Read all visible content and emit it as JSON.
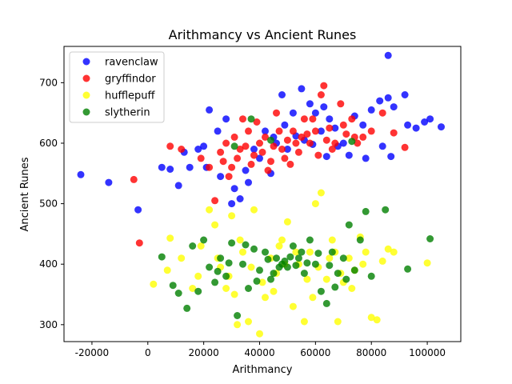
{
  "chart_data": {
    "type": "scatter",
    "title": "Arithmancy vs Ancient Runes",
    "xlabel": "Arithmancy",
    "ylabel": "Ancient Runes",
    "xlim": [
      -30000,
      112000
    ],
    "ylim": [
      272,
      760
    ],
    "xticks": [
      -20000,
      0,
      20000,
      40000,
      60000,
      80000,
      100000
    ],
    "yticks": [
      300,
      400,
      500,
      600,
      700
    ],
    "grid": false,
    "legend_position": "top-left",
    "series": [
      {
        "name": "ravenclaw",
        "color": "#0000ff",
        "points": [
          [
            -24000,
            548
          ],
          [
            -14000,
            535
          ],
          [
            -3500,
            490
          ],
          [
            86000,
            745
          ],
          [
            5000,
            560
          ],
          [
            8000,
            557
          ],
          [
            11000,
            530
          ],
          [
            13000,
            585
          ],
          [
            15000,
            560
          ],
          [
            18000,
            590
          ],
          [
            20000,
            595
          ],
          [
            22000,
            655
          ],
          [
            25000,
            620
          ],
          [
            28000,
            640
          ],
          [
            30000,
            500
          ],
          [
            33000,
            508
          ],
          [
            35000,
            555
          ],
          [
            40000,
            575
          ],
          [
            45000,
            610
          ],
          [
            48000,
            680
          ],
          [
            52000,
            650
          ],
          [
            55000,
            690
          ],
          [
            58000,
            665
          ],
          [
            60000,
            650
          ],
          [
            63000,
            660
          ],
          [
            65000,
            640
          ],
          [
            67000,
            625
          ],
          [
            70000,
            600
          ],
          [
            74000,
            645
          ],
          [
            77000,
            630
          ],
          [
            80000,
            655
          ],
          [
            83000,
            670
          ],
          [
            86000,
            675
          ],
          [
            88000,
            660
          ],
          [
            92000,
            680
          ],
          [
            93000,
            630
          ],
          [
            96000,
            625
          ],
          [
            99000,
            635
          ],
          [
            101000,
            640
          ],
          [
            105000,
            627
          ],
          [
            42000,
            620
          ],
          [
            38000,
            590
          ],
          [
            46000,
            600
          ],
          [
            50000,
            590
          ],
          [
            56000,
            605
          ],
          [
            62000,
            620
          ],
          [
            68000,
            595
          ],
          [
            72000,
            580
          ],
          [
            78000,
            575
          ],
          [
            84000,
            595
          ],
          [
            87000,
            578
          ],
          [
            21000,
            560
          ],
          [
            26000,
            545
          ],
          [
            31000,
            525
          ],
          [
            36000,
            535
          ],
          [
            44000,
            550
          ],
          [
            49000,
            630
          ],
          [
            53000,
            612
          ],
          [
            59000,
            598
          ],
          [
            64000,
            578
          ]
        ]
      },
      {
        "name": "gryffindor",
        "color": "#ff0000",
        "points": [
          [
            -5000,
            540
          ],
          [
            -3000,
            435
          ],
          [
            8000,
            595
          ],
          [
            12000,
            590
          ],
          [
            19000,
            575
          ],
          [
            22000,
            560
          ],
          [
            24000,
            505
          ],
          [
            26000,
            585
          ],
          [
            28000,
            600
          ],
          [
            30000,
            560
          ],
          [
            32000,
            575
          ],
          [
            34000,
            640
          ],
          [
            36000,
            620
          ],
          [
            38000,
            580
          ],
          [
            40000,
            600
          ],
          [
            42000,
            610
          ],
          [
            44000,
            570
          ],
          [
            46000,
            650
          ],
          [
            48000,
            590
          ],
          [
            50000,
            605
          ],
          [
            52000,
            620
          ],
          [
            54000,
            585
          ],
          [
            56000,
            640
          ],
          [
            58000,
            600
          ],
          [
            60000,
            620
          ],
          [
            62000,
            680
          ],
          [
            63000,
            695
          ],
          [
            65000,
            625
          ],
          [
            67000,
            600
          ],
          [
            69000,
            665
          ],
          [
            71000,
            615
          ],
          [
            73000,
            640
          ],
          [
            75000,
            600
          ],
          [
            77000,
            610
          ],
          [
            80000,
            620
          ],
          [
            84000,
            650
          ],
          [
            88000,
            617
          ],
          [
            92000,
            593
          ],
          [
            29000,
            545
          ],
          [
            33000,
            590
          ],
          [
            37000,
            565
          ],
          [
            41000,
            585
          ],
          [
            45000,
            595
          ],
          [
            49000,
            575
          ],
          [
            53000,
            600
          ],
          [
            57000,
            615
          ],
          [
            61000,
            580
          ],
          [
            66000,
            590
          ],
          [
            70000,
            630
          ],
          [
            74000,
            610
          ],
          [
            27000,
            570
          ],
          [
            31000,
            610
          ],
          [
            35000,
            595
          ],
          [
            39000,
            635
          ],
          [
            43000,
            555
          ],
          [
            47000,
            620
          ],
          [
            51000,
            565
          ],
          [
            55000,
            610
          ],
          [
            59000,
            640
          ],
          [
            64000,
            605
          ]
        ]
      },
      {
        "name": "hufflepuff",
        "color": "#ffff00",
        "points": [
          [
            2000,
            367
          ],
          [
            7000,
            390
          ],
          [
            8000,
            443
          ],
          [
            12000,
            410
          ],
          [
            16000,
            360
          ],
          [
            19000,
            430
          ],
          [
            22000,
            490
          ],
          [
            24000,
            465
          ],
          [
            26000,
            395
          ],
          [
            28000,
            360
          ],
          [
            30000,
            480
          ],
          [
            32000,
            300
          ],
          [
            34000,
            420
          ],
          [
            36000,
            305
          ],
          [
            38000,
            490
          ],
          [
            40000,
            285
          ],
          [
            42000,
            345
          ],
          [
            44000,
            410
          ],
          [
            46000,
            385
          ],
          [
            48000,
            440
          ],
          [
            50000,
            470
          ],
          [
            52000,
            330
          ],
          [
            54000,
            400
          ],
          [
            56000,
            305
          ],
          [
            58000,
            420
          ],
          [
            60000,
            500
          ],
          [
            62000,
            518
          ],
          [
            64000,
            375
          ],
          [
            66000,
            440
          ],
          [
            68000,
            305
          ],
          [
            70000,
            370
          ],
          [
            72000,
            410
          ],
          [
            74000,
            390
          ],
          [
            76000,
            445
          ],
          [
            78000,
            420
          ],
          [
            80000,
            312
          ],
          [
            82000,
            308
          ],
          [
            84000,
            405
          ],
          [
            86000,
            425
          ],
          [
            88000,
            420
          ],
          [
            100000,
            402
          ],
          [
            25000,
            410
          ],
          [
            29000,
            380
          ],
          [
            33000,
            440
          ],
          [
            37000,
            395
          ],
          [
            41000,
            370
          ],
          [
            45000,
            355
          ],
          [
            49000,
            400
          ],
          [
            53000,
            420
          ],
          [
            57000,
            375
          ],
          [
            61000,
            395
          ],
          [
            65000,
            410
          ],
          [
            69000,
            385
          ],
          [
            73000,
            360
          ],
          [
            77000,
            400
          ],
          [
            18000,
            380
          ],
          [
            31000,
            350
          ],
          [
            47000,
            430
          ],
          [
            59000,
            345
          ],
          [
            67000,
            420
          ]
        ]
      },
      {
        "name": "slytherin",
        "color": "#008000",
        "points": [
          [
            5000,
            412
          ],
          [
            9000,
            365
          ],
          [
            11000,
            352
          ],
          [
            14000,
            327
          ],
          [
            16000,
            430
          ],
          [
            18000,
            355
          ],
          [
            20000,
            440
          ],
          [
            22000,
            395
          ],
          [
            24000,
            370
          ],
          [
            26000,
            410
          ],
          [
            28000,
            380
          ],
          [
            30000,
            435
          ],
          [
            32000,
            315
          ],
          [
            34000,
            400
          ],
          [
            36000,
            360
          ],
          [
            38000,
            425
          ],
          [
            40000,
            390
          ],
          [
            42000,
            420
          ],
          [
            44000,
            375
          ],
          [
            46000,
            410
          ],
          [
            48000,
            400
          ],
          [
            50000,
            395
          ],
          [
            52000,
            430
          ],
          [
            54000,
            410
          ],
          [
            56000,
            385
          ],
          [
            58000,
            440
          ],
          [
            60000,
            400
          ],
          [
            62000,
            355
          ],
          [
            64000,
            335
          ],
          [
            66000,
            420
          ],
          [
            68000,
            385
          ],
          [
            70000,
            410
          ],
          [
            72000,
            465
          ],
          [
            74000,
            390
          ],
          [
            76000,
            440
          ],
          [
            78000,
            487
          ],
          [
            80000,
            380
          ],
          [
            85000,
            490
          ],
          [
            93000,
            392
          ],
          [
            101000,
            442
          ],
          [
            37000,
            640
          ],
          [
            44000,
            605
          ],
          [
            73000,
            603
          ],
          [
            31000,
            595
          ],
          [
            47000,
            395
          ],
          [
            49000,
            405
          ],
          [
            51000,
            412
          ],
          [
            53000,
            398
          ],
          [
            45000,
            385
          ],
          [
            55000,
            420
          ],
          [
            57000,
            402
          ],
          [
            43000,
            408
          ],
          [
            39000,
            372
          ],
          [
            61000,
            418
          ],
          [
            65000,
            398
          ],
          [
            67000,
            362
          ],
          [
            35000,
            432
          ],
          [
            29000,
            402
          ],
          [
            25000,
            388
          ],
          [
            71000,
            375
          ]
        ]
      }
    ]
  }
}
